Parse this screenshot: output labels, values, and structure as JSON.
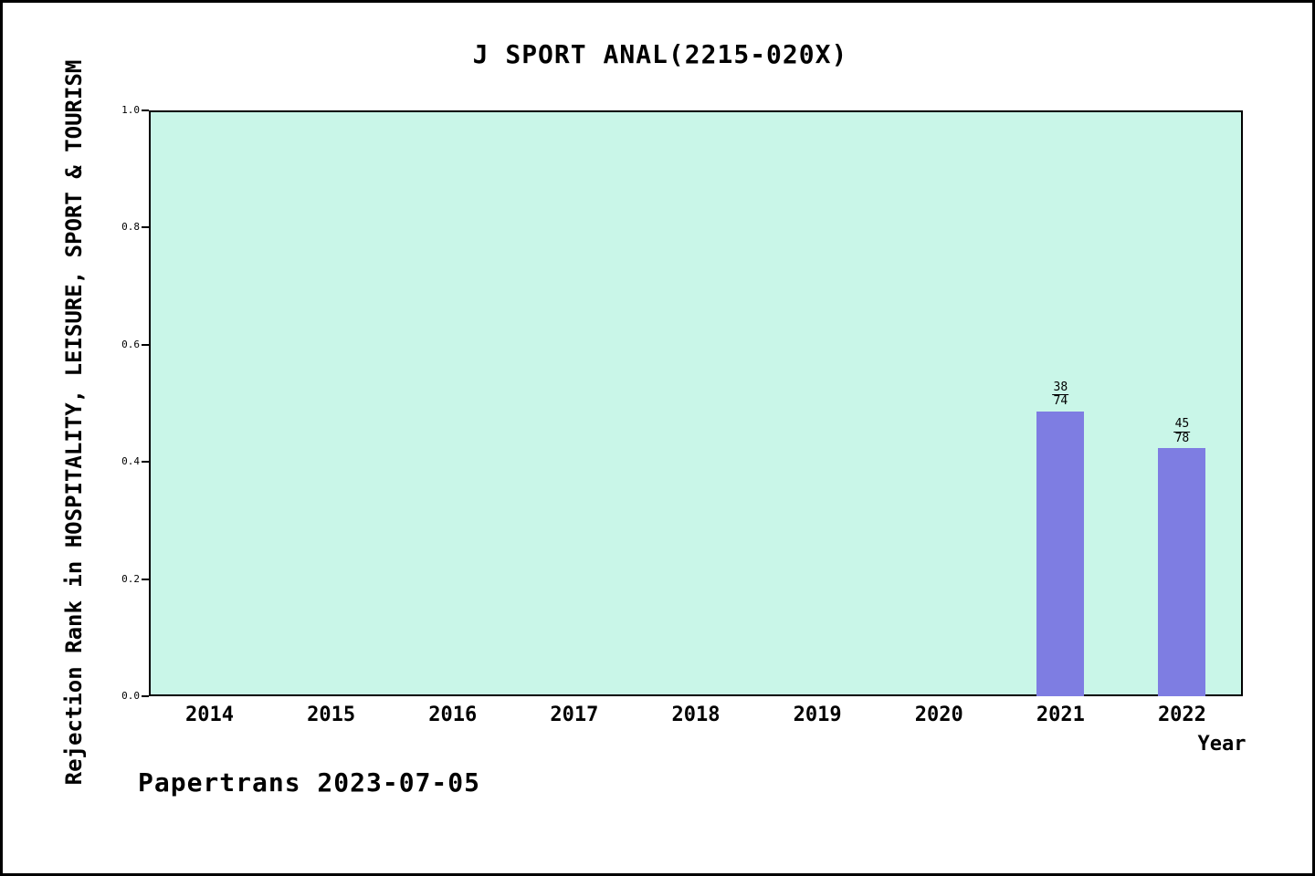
{
  "footer": "Papertrans 2023-07-05",
  "chart_data": {
    "type": "bar",
    "title": "J SPORT ANAL(2215-020X)",
    "xlabel": "Year",
    "ylabel": "Rejection Rank in HOSPITALITY, LEISURE, SPORT & TOURISM",
    "categories": [
      "2014",
      "2015",
      "2016",
      "2017",
      "2018",
      "2019",
      "2020",
      "2021",
      "2022"
    ],
    "values": [
      null,
      null,
      null,
      null,
      null,
      null,
      null,
      0.486,
      0.423
    ],
    "bar_labels": [
      null,
      null,
      null,
      null,
      null,
      null,
      null,
      {
        "numerator": "38",
        "denominator": "74"
      },
      {
        "numerator": "45",
        "denominator": "78"
      }
    ],
    "ylim": [
      0.0,
      1.0
    ],
    "yticks": [
      "1.0",
      "0.8",
      "0.6",
      "0.4",
      "0.2",
      "0.0"
    ],
    "grid": "off",
    "legend": "none",
    "colors": {
      "bar_fill": "#7e7de2",
      "plot_bg": "#c9f6e8",
      "text": "#000000"
    }
  }
}
